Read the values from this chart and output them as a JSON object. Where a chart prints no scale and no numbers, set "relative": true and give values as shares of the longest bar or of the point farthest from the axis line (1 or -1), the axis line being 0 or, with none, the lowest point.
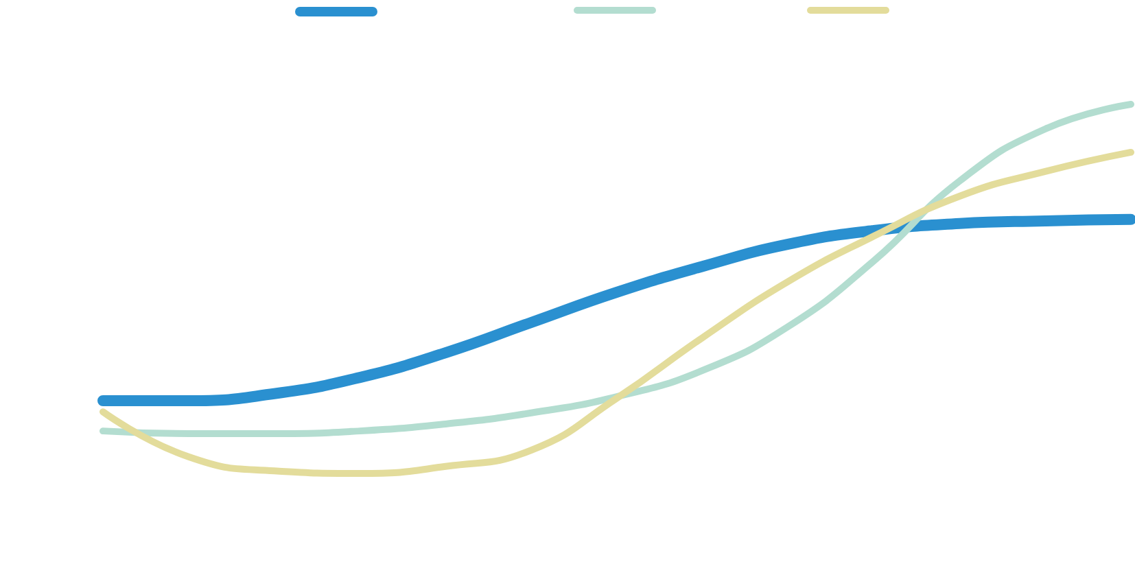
{
  "chart_data": {
    "type": "line",
    "relative": true,
    "marker": "none",
    "line_style": "solid",
    "grid": false,
    "categories": [
      null,
      null,
      null,
      null,
      null,
      null,
      null,
      null,
      null,
      null,
      null,
      null,
      null
    ],
    "series": [
      {
        "color": "#2a90d0",
        "values": [
          0.197,
          0.197,
          0.216,
          0.26,
          0.327,
          0.409,
          0.491,
          0.561,
          0.621,
          0.658,
          0.677,
          0.684,
          0.688
        ]
      },
      {
        "color": "#b3ddd0",
        "values": [
          0.115,
          0.108,
          0.108,
          0.115,
          0.134,
          0.164,
          0.208,
          0.279,
          0.398,
          0.576,
          0.792,
          0.933,
          1
        ]
      },
      {
        "color": "#e3dc9b",
        "values": [
          0.167,
          0.045,
          0.007,
          0,
          0.019,
          0.063,
          0.204,
          0.368,
          0.52,
          0.643,
          0.751,
          0.818,
          0.87
        ]
      }
    ]
  }
}
